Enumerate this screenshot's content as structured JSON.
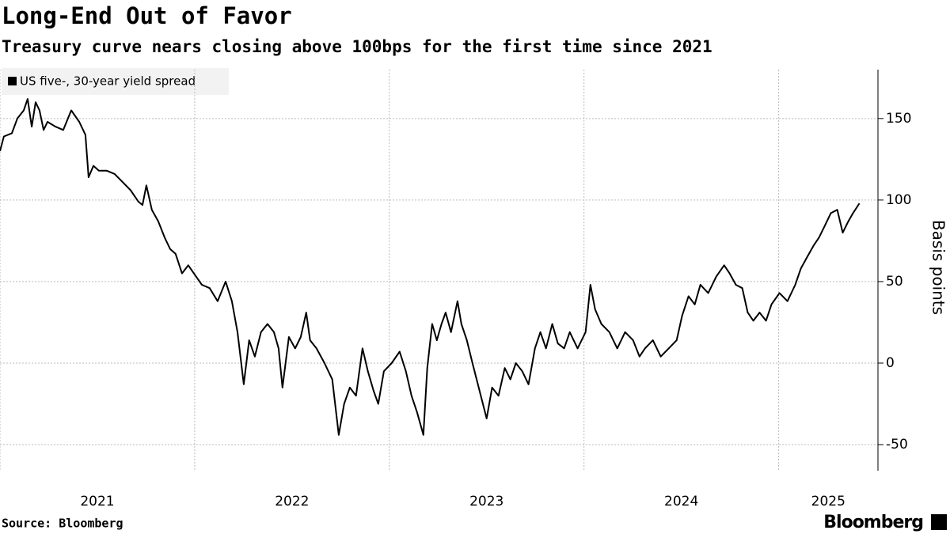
{
  "chart_data": {
    "type": "line",
    "title": "Long-End Out of Favor",
    "subtitle": "Treasury curve nears closing above 100bps for the first time since 2021",
    "y_label": "Basis points",
    "source": "Source: Bloomberg",
    "brand": "Bloomberg",
    "grid": true,
    "legend": "top-left",
    "xlim": [
      2021.0,
      2025.51
    ],
    "xticks": [
      2021,
      2022,
      2023,
      2024,
      2025
    ],
    "ylim": [
      -66,
      180
    ],
    "yticks": [
      -50,
      0,
      50,
      100,
      150
    ],
    "series": [
      {
        "name": "US five-, 30-year yield spread",
        "color": "#000000",
        "x": [
          2021.0,
          2021.02,
          2021.061,
          2021.089,
          2021.122,
          2021.142,
          2021.163,
          2021.183,
          2021.203,
          2021.224,
          2021.244,
          2021.285,
          2021.325,
          2021.366,
          2021.407,
          2021.439,
          2021.455,
          2021.48,
          2021.508,
          2021.549,
          2021.589,
          2021.63,
          2021.671,
          2021.711,
          2021.732,
          2021.752,
          2021.78,
          2021.813,
          2021.846,
          2021.874,
          2021.902,
          2021.935,
          2021.967,
          2021.996,
          2022.037,
          2022.077,
          2022.118,
          2022.159,
          2022.191,
          2022.22,
          2022.252,
          2022.28,
          2022.309,
          2022.341,
          2022.374,
          2022.407,
          2022.431,
          2022.451,
          2022.484,
          2022.516,
          2022.545,
          2022.573,
          2022.593,
          2022.626,
          2022.667,
          2022.707,
          2022.74,
          2022.768,
          2022.797,
          2022.829,
          2022.862,
          2022.89,
          2022.919,
          2022.943,
          2022.972,
          2023.012,
          2023.053,
          2023.085,
          2023.114,
          2023.142,
          2023.175,
          2023.195,
          2023.22,
          2023.244,
          2023.268,
          2023.289,
          2023.317,
          2023.35,
          2023.37,
          2023.398,
          2023.427,
          2023.459,
          2023.5,
          2023.528,
          2023.561,
          2023.593,
          2023.622,
          2023.65,
          2023.683,
          2023.715,
          2023.748,
          2023.776,
          2023.805,
          2023.837,
          2023.866,
          2023.898,
          2023.927,
          2023.967,
          2024.008,
          2024.033,
          2024.057,
          2024.089,
          2024.13,
          2024.171,
          2024.211,
          2024.252,
          2024.285,
          2024.313,
          2024.354,
          2024.394,
          2024.435,
          2024.476,
          2024.504,
          2024.537,
          2024.569,
          2024.598,
          2024.638,
          2024.679,
          2024.72,
          2024.748,
          2024.78,
          2024.813,
          2024.841,
          2024.87,
          2024.902,
          2024.935,
          2024.963,
          2025.004,
          2025.045,
          2025.085,
          2025.114,
          2025.146,
          2025.179,
          2025.207,
          2025.236,
          2025.268,
          2025.301,
          2025.329,
          2025.358,
          2025.382,
          2025.415
        ],
        "values": [
          130,
          139,
          141,
          150,
          155,
          162,
          145,
          160,
          155,
          143,
          148,
          145,
          143,
          155,
          148,
          140,
          114,
          121,
          118,
          118,
          116,
          111,
          106,
          99,
          97,
          109,
          94,
          87,
          77,
          70,
          67,
          55,
          60,
          55,
          48,
          46,
          38,
          50,
          38,
          19,
          -13,
          14,
          4,
          19,
          24,
          19,
          9,
          -15,
          16,
          9,
          16,
          31,
          14,
          9,
          0,
          -10,
          -44,
          -25,
          -15,
          -20,
          9,
          -5,
          -17,
          -25,
          -5,
          0,
          7,
          -5,
          -20,
          -30,
          -44,
          -3,
          24,
          14,
          24,
          31,
          19,
          38,
          24,
          14,
          0,
          -15,
          -34,
          -15,
          -20,
          -3,
          -10,
          0,
          -5,
          -13,
          9,
          19,
          9,
          24,
          12,
          9,
          19,
          9,
          19,
          48,
          33,
          24,
          19,
          9,
          19,
          14,
          4,
          9,
          14,
          4,
          9,
          14,
          29,
          41,
          36,
          48,
          43,
          53,
          60,
          55,
          48,
          46,
          31,
          26,
          31,
          26,
          36,
          43,
          38,
          48,
          58,
          65,
          72,
          77,
          84,
          92,
          94,
          80,
          87,
          92,
          98
        ]
      }
    ]
  }
}
